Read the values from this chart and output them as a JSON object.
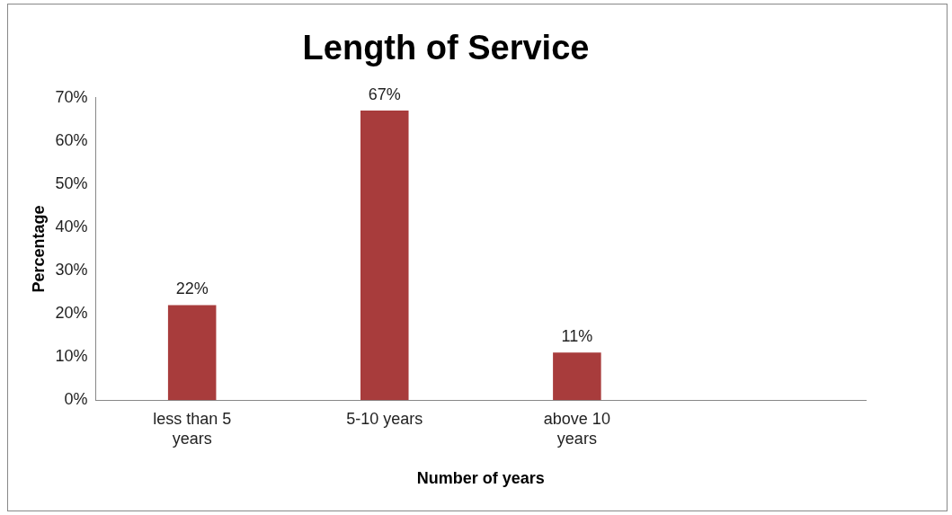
{
  "chart_data": {
    "type": "bar",
    "title": "Length of Service",
    "xlabel": "Number of years",
    "ylabel": "Percentage",
    "categories": [
      "less than 5 years",
      "5-10 years",
      "above 10 years",
      null
    ],
    "values": [
      22,
      67,
      11,
      null
    ],
    "value_labels": [
      "22%",
      "67%",
      "11%",
      null
    ],
    "color": "#a83c3c",
    "ylim": [
      0,
      70
    ],
    "yticks": [
      {
        "value": 0,
        "label": "0%"
      },
      {
        "value": 10,
        "label": "10%"
      },
      {
        "value": 20,
        "label": "20%"
      },
      {
        "value": 30,
        "label": "30%"
      },
      {
        "value": 40,
        "label": "40%"
      },
      {
        "value": 50,
        "label": "50%"
      },
      {
        "value": 60,
        "label": "60%"
      },
      {
        "value": 70,
        "label": "70%"
      }
    ],
    "grid": false,
    "legend": false
  }
}
